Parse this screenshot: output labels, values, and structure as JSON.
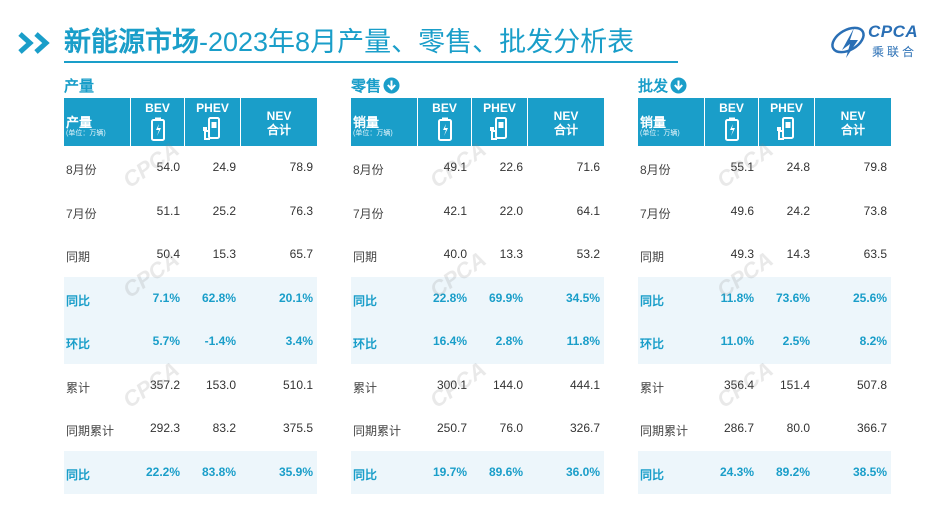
{
  "header": {
    "title_bold": "新能源市场",
    "title_rest": "-2023年8月产量、零售、批发分析表"
  },
  "logo": {
    "brand": "CPCA",
    "cn": "乘联合",
    "en": "CPCA"
  },
  "colors": {
    "accent": "#1a9ec9",
    "highlight_row": "#edf6fb",
    "logo": "#2a6fb5"
  },
  "columns": {
    "bev": "BEV",
    "phev": "PHEV",
    "nev_line1": "NEV",
    "nev_line2": "合计",
    "unit": "(单位：万辆)"
  },
  "tables": [
    {
      "label": "产量",
      "has_arrow": false,
      "corner": "产量",
      "rows": [
        {
          "label": "8月份",
          "bev": "54.0",
          "phev": "24.9",
          "nev": "78.9",
          "highlight": false
        },
        {
          "label": "7月份",
          "bev": "51.1",
          "phev": "25.2",
          "nev": "76.3",
          "highlight": false
        },
        {
          "label": "同期",
          "bev": "50.4",
          "phev": "15.3",
          "nev": "65.7",
          "highlight": false
        },
        {
          "label": "同比",
          "bev": "7.1%",
          "phev": "62.8%",
          "nev": "20.1%",
          "highlight": true
        },
        {
          "label": "环比",
          "bev": "5.7%",
          "phev": "-1.4%",
          "nev": "3.4%",
          "highlight": true
        },
        {
          "label": "累计",
          "bev": "357.2",
          "phev": "153.0",
          "nev": "510.1",
          "highlight": false
        },
        {
          "label": "同期累计",
          "bev": "292.3",
          "phev": "83.2",
          "nev": "375.5",
          "highlight": false
        },
        {
          "label": "同比",
          "bev": "22.2%",
          "phev": "83.8%",
          "nev": "35.9%",
          "highlight": true
        }
      ]
    },
    {
      "label": "零售",
      "has_arrow": true,
      "corner": "销量",
      "rows": [
        {
          "label": "8月份",
          "bev": "49.1",
          "phev": "22.6",
          "nev": "71.6",
          "highlight": false
        },
        {
          "label": "7月份",
          "bev": "42.1",
          "phev": "22.0",
          "nev": "64.1",
          "highlight": false
        },
        {
          "label": "同期",
          "bev": "40.0",
          "phev": "13.3",
          "nev": "53.2",
          "highlight": false
        },
        {
          "label": "同比",
          "bev": "22.8%",
          "phev": "69.9%",
          "nev": "34.5%",
          "highlight": true
        },
        {
          "label": "环比",
          "bev": "16.4%",
          "phev": "2.8%",
          "nev": "11.8%",
          "highlight": true
        },
        {
          "label": "累计",
          "bev": "300.1",
          "phev": "144.0",
          "nev": "444.1",
          "highlight": false
        },
        {
          "label": "同期累计",
          "bev": "250.7",
          "phev": "76.0",
          "nev": "326.7",
          "highlight": false
        },
        {
          "label": "同比",
          "bev": "19.7%",
          "phev": "89.6%",
          "nev": "36.0%",
          "highlight": true
        }
      ]
    },
    {
      "label": "批发",
      "has_arrow": true,
      "corner": "销量",
      "rows": [
        {
          "label": "8月份",
          "bev": "55.1",
          "phev": "24.8",
          "nev": "79.8",
          "highlight": false
        },
        {
          "label": "7月份",
          "bev": "49.6",
          "phev": "24.2",
          "nev": "73.8",
          "highlight": false
        },
        {
          "label": "同期",
          "bev": "49.3",
          "phev": "14.3",
          "nev": "63.5",
          "highlight": false
        },
        {
          "label": "同比",
          "bev": "11.8%",
          "phev": "73.6%",
          "nev": "25.6%",
          "highlight": true
        },
        {
          "label": "环比",
          "bev": "11.0%",
          "phev": "2.5%",
          "nev": "8.2%",
          "highlight": true
        },
        {
          "label": "累计",
          "bev": "356.4",
          "phev": "151.4",
          "nev": "507.8",
          "highlight": false
        },
        {
          "label": "同期累计",
          "bev": "286.7",
          "phev": "80.0",
          "nev": "366.7",
          "highlight": false
        },
        {
          "label": "同比",
          "bev": "24.3%",
          "phev": "89.2%",
          "nev": "38.5%",
          "highlight": true
        }
      ]
    }
  ]
}
